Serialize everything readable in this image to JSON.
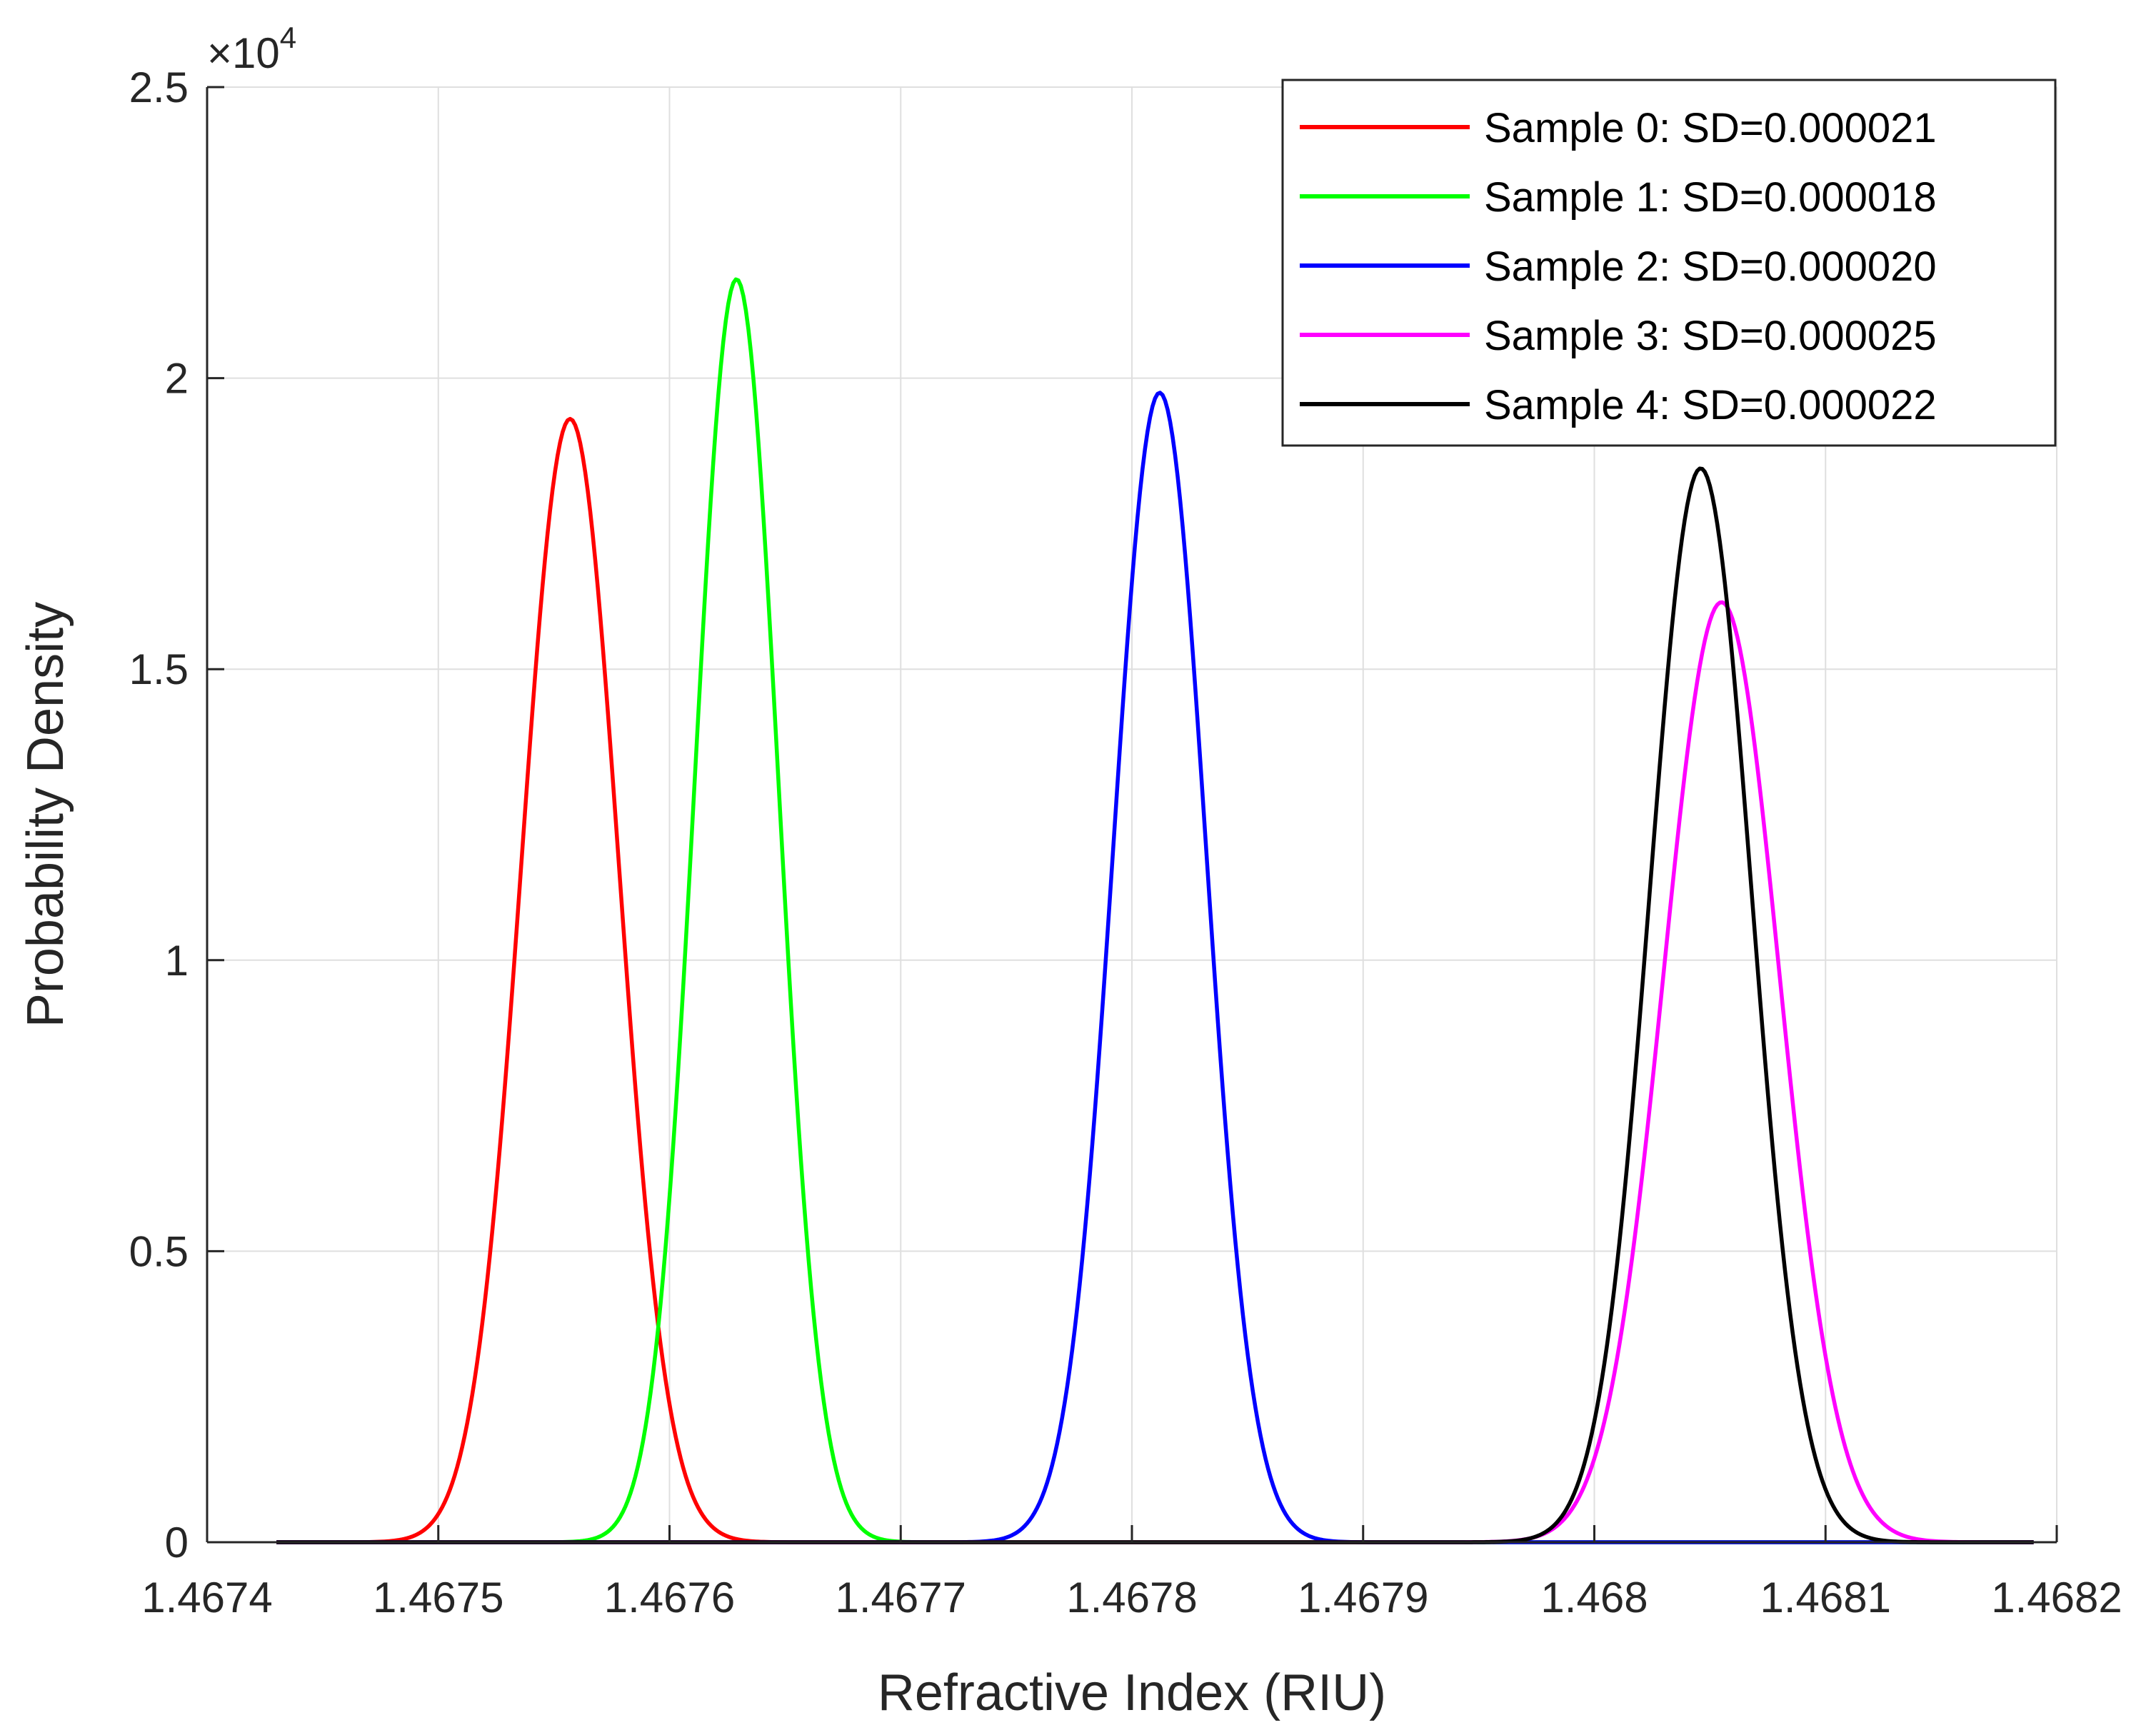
{
  "chart_data": {
    "type": "line",
    "xlabel": "Refractive Index (RIU)",
    "ylabel": "Probability Density",
    "xlim": [
      1.4674,
      1.4682
    ],
    "ylim": [
      0,
      25000
    ],
    "x_ticks": [
      1.4674,
      1.4675,
      1.4676,
      1.4677,
      1.4678,
      1.4679,
      1.468,
      1.4681,
      1.4682
    ],
    "x_tick_labels": [
      "1.4674",
      "1.4675",
      "1.4676",
      "1.4677",
      "1.4678",
      "1.4679",
      "1.468",
      "1.4681",
      "1.4682"
    ],
    "y_ticks": [
      0,
      5000,
      10000,
      15000,
      20000,
      25000
    ],
    "y_tick_labels": [
      "0",
      "0.5",
      "1",
      "1.5",
      "2",
      "2.5"
    ],
    "y_exponent_label": {
      "base": "×10",
      "exp": "4"
    },
    "grid": true,
    "legend_position": "top-right",
    "x_range_plotted": [
      1.46743,
      1.46819
    ],
    "series": [
      {
        "name": "Sample 0: SD=0.000021",
        "mean": 1.467557,
        "sd": 2.1e-05,
        "peak": 19300,
        "color": "#ff0000"
      },
      {
        "name": "Sample 1: SD=0.000018",
        "mean": 1.467629,
        "sd": 1.8e-05,
        "peak": 21700,
        "color": "#00ff00"
      },
      {
        "name": "Sample 2: SD=0.000020",
        "mean": 1.467812,
        "sd": 2e-05,
        "peak": 19750,
        "color": "#0000ff"
      },
      {
        "name": "Sample 3: SD=0.000025",
        "mean": 1.468055,
        "sd": 2.5e-05,
        "peak": 16150,
        "color": "#ff00ff"
      },
      {
        "name": "Sample 4: SD=0.000022",
        "mean": 1.468046,
        "sd": 2.2e-05,
        "peak": 18450,
        "color": "#000000"
      }
    ]
  }
}
